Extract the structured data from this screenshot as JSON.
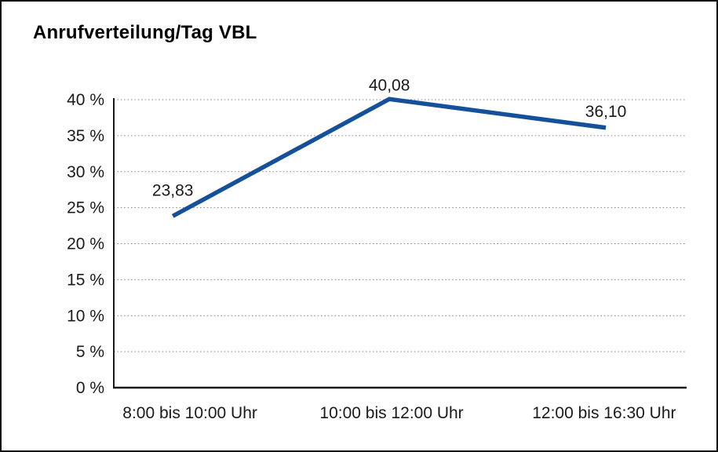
{
  "chart_data": {
    "type": "line",
    "title": "Anrufverteilung/Tag VBL",
    "categories": [
      "8:00 bis 10:00 Uhr",
      "10:00 bis 12:00 Uhr",
      "12:00 bis 16:30 Uhr"
    ],
    "values": [
      23.83,
      40.08,
      36.1
    ],
    "data_labels": [
      "23,83",
      "40,08",
      "36,10"
    ],
    "xlabel": "",
    "ylabel": "",
    "ylim": [
      0,
      40
    ],
    "ytick_step": 5,
    "ytick_labels": [
      "0 %",
      "5 %",
      "10 %",
      "15 %",
      "20 %",
      "25 %",
      "30 %",
      "35 %",
      "40 %"
    ],
    "grid": "horizontal-dotted",
    "legend": "none",
    "line_color": "#15509b",
    "axis_color": "#1a1a1a",
    "gridline_color": "#8a8a8a",
    "background_color": "#ffffff",
    "frame_border_color": "#111111"
  }
}
